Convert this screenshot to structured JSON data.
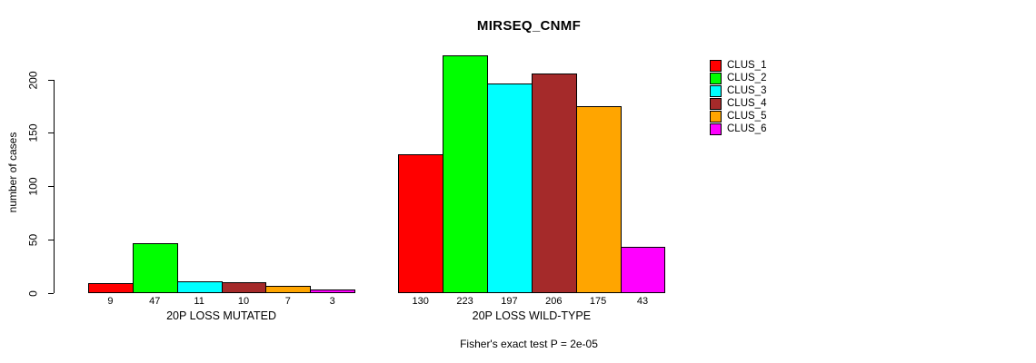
{
  "chart_data": {
    "type": "bar",
    "title": "MIRSEQ_CNMF",
    "ylabel": "number of cases",
    "xlabel": "",
    "categories": [
      "20P LOSS MUTATED",
      "20P LOSS WILD-TYPE"
    ],
    "series": [
      {
        "name": "CLUS_1",
        "color": "#FF0000",
        "values": [
          9,
          130
        ]
      },
      {
        "name": "CLUS_2",
        "color": "#00FF00",
        "values": [
          47,
          223
        ]
      },
      {
        "name": "CLUS_3",
        "color": "#00FFFF",
        "values": [
          11,
          197
        ]
      },
      {
        "name": "CLUS_4",
        "color": "#A52A2A",
        "values": [
          10,
          206
        ]
      },
      {
        "name": "CLUS_5",
        "color": "#FFA500",
        "values": [
          7,
          175
        ]
      },
      {
        "name": "CLUS_6",
        "color": "#FF00FF",
        "values": [
          3,
          43
        ]
      }
    ],
    "yticks": [
      0,
      50,
      100,
      150,
      200
    ],
    "ylim": [
      0,
      235
    ],
    "grid": false,
    "legend_position": "right",
    "bar_values_shown": true,
    "annotation": "Fisher's exact test P = 2e-05"
  }
}
